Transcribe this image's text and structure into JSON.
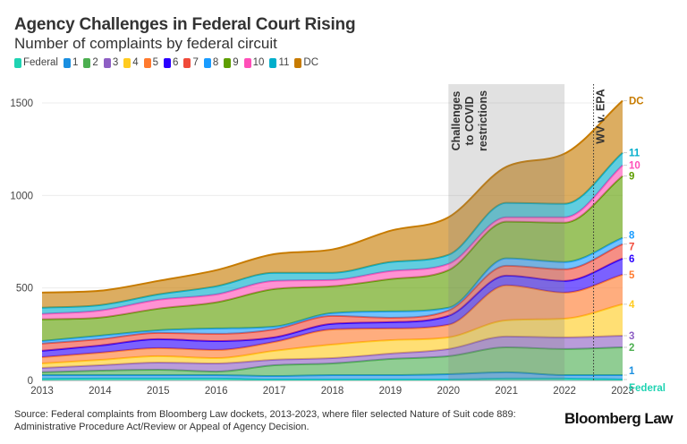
{
  "title": "Agency Challenges in Federal Court Rising",
  "subtitle": "Number of complaints by federal circuit",
  "source": "Source: Federal complaints from Bloomberg Law dockets, 2013-2023, where filer selected Nature of Suit code 889: Administrative Procedure Act/Review or Appeal of Agency Decision.",
  "logo": "Bloomberg Law",
  "chart_data": {
    "type": "area",
    "stacked": true,
    "title": "Agency Challenges in Federal Court Rising",
    "subtitle": "Number of complaints by federal circuit",
    "xlabel": "",
    "ylabel": "",
    "x": [
      2013,
      2014,
      2015,
      2016,
      2017,
      2018,
      2019,
      2020,
      2021,
      2022,
      2023
    ],
    "xticks": [
      "2013",
      "2014",
      "2015",
      "2016",
      "2017",
      "2018",
      "2019",
      "2020",
      "2021",
      "2022",
      "2023"
    ],
    "ylim": [
      0,
      1500
    ],
    "yticks": [
      "0",
      "500",
      "1000",
      "1500"
    ],
    "grid": true,
    "legend": "top-left",
    "series": [
      {
        "name": "Federal",
        "color": "#1fd3b2",
        "values": [
          8,
          10,
          10,
          10,
          5,
          5,
          5,
          5,
          10,
          10,
          5
        ]
      },
      {
        "name": "1",
        "color": "#1a8fe0",
        "values": [
          21,
          19,
          19,
          19,
          19,
          24,
          24,
          29,
          34,
          19,
          24
        ]
      },
      {
        "name": "2",
        "color": "#4caf50",
        "values": [
          15,
          24,
          29,
          19,
          58,
          63,
          87,
          97,
          135,
          141,
          150
        ]
      },
      {
        "name": "3",
        "color": "#8e5fc4",
        "values": [
          24,
          29,
          39,
          44,
          30,
          29,
          29,
          39,
          59,
          63,
          63
        ]
      },
      {
        "name": "4",
        "color": "#ffcb1f",
        "values": [
          24,
          29,
          34,
          29,
          48,
          73,
          73,
          63,
          87,
          101,
          170
        ]
      },
      {
        "name": "5",
        "color": "#ff7a2e",
        "values": [
          34,
          39,
          44,
          44,
          48,
          82,
          63,
          68,
          189,
          141,
          160
        ]
      },
      {
        "name": "6",
        "color": "#2a00ff",
        "values": [
          34,
          39,
          48,
          48,
          25,
          30,
          34,
          48,
          53,
          63,
          87
        ]
      },
      {
        "name": "7",
        "color": "#f04a3a",
        "values": [
          39,
          34,
          34,
          39,
          43,
          43,
          24,
          29,
          53,
          63,
          78
        ]
      },
      {
        "name": "8",
        "color": "#1a9cff",
        "values": [
          14,
          19,
          14,
          29,
          15,
          15,
          34,
          15,
          40,
          39,
          34
        ]
      },
      {
        "name": "9",
        "color": "#5e9e00",
        "values": [
          117,
          98,
          117,
          141,
          203,
          145,
          175,
          203,
          198,
          213,
          334
        ]
      },
      {
        "name": "10",
        "color": "#ff4fb8",
        "values": [
          29,
          38,
          48,
          43,
          44,
          34,
          43,
          34,
          24,
          29,
          58
        ]
      },
      {
        "name": "11",
        "color": "#00aecb",
        "values": [
          34,
          29,
          29,
          44,
          44,
          39,
          49,
          49,
          78,
          73,
          68
        ]
      },
      {
        "name": "DC",
        "color": "#c77b00",
        "values": [
          82,
          78,
          73,
          87,
          101,
          126,
          169,
          203,
          195,
          271,
          281
        ]
      }
    ],
    "annotations": [
      {
        "type": "shaded-range",
        "x": [
          2020,
          2022
        ],
        "lines": [
          "Challenges",
          "to COVID",
          "restrictions"
        ]
      },
      {
        "type": "vline",
        "x": 2022.5,
        "label": "WV v. EPA"
      }
    ]
  }
}
